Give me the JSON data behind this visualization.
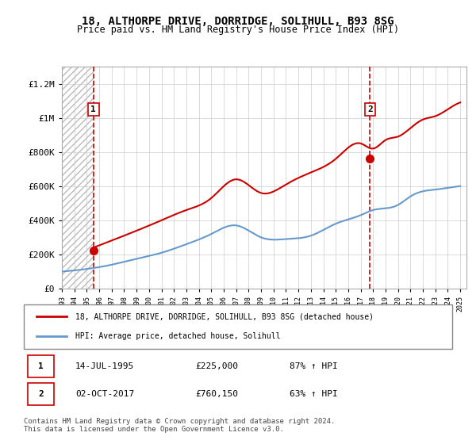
{
  "title": "18, ALTHORPE DRIVE, DORRIDGE, SOLIHULL, B93 8SG",
  "subtitle": "Price paid vs. HM Land Registry's House Price Index (HPI)",
  "ylabel_ticks": [
    "£0",
    "£200K",
    "£400K",
    "£600K",
    "£800K",
    "£1M",
    "£1.2M"
  ],
  "ytick_values": [
    0,
    200000,
    400000,
    600000,
    800000,
    1000000,
    1200000
  ],
  "ylim": [
    0,
    1300000
  ],
  "sale1_date": 1995.54,
  "sale1_price": 225000,
  "sale1_label": "1",
  "sale2_date": 2017.75,
  "sale2_price": 760150,
  "sale2_label": "2",
  "legend_line1": "18, ALTHORPE DRIVE, DORRIDGE, SOLIHULL, B93 8SG (detached house)",
  "legend_line2": "HPI: Average price, detached house, Solihull",
  "table_row1": [
    "1",
    "14-JUL-1995",
    "£225,000",
    "87% ↑ HPI"
  ],
  "table_row2": [
    "2",
    "02-OCT-2017",
    "£760,150",
    "63% ↑ HPI"
  ],
  "copyright_text": "Contains HM Land Registry data © Crown copyright and database right 2024.\nThis data is licensed under the Open Government Licence v3.0.",
  "hpi_color": "#6699cc",
  "price_color": "#cc0000",
  "vline_color": "#cc0000",
  "bg_hatch_color": "#cccccc",
  "grid_color": "#cccccc",
  "xlim_start": 1993.0,
  "xlim_end": 2025.5,
  "xtick_years": [
    1993,
    1994,
    1995,
    1996,
    1997,
    1998,
    1999,
    2000,
    2001,
    2002,
    2003,
    2004,
    2005,
    2006,
    2007,
    2008,
    2009,
    2010,
    2011,
    2012,
    2013,
    2014,
    2015,
    2016,
    2017,
    2018,
    2019,
    2020,
    2021,
    2022,
    2023,
    2024,
    2025
  ]
}
